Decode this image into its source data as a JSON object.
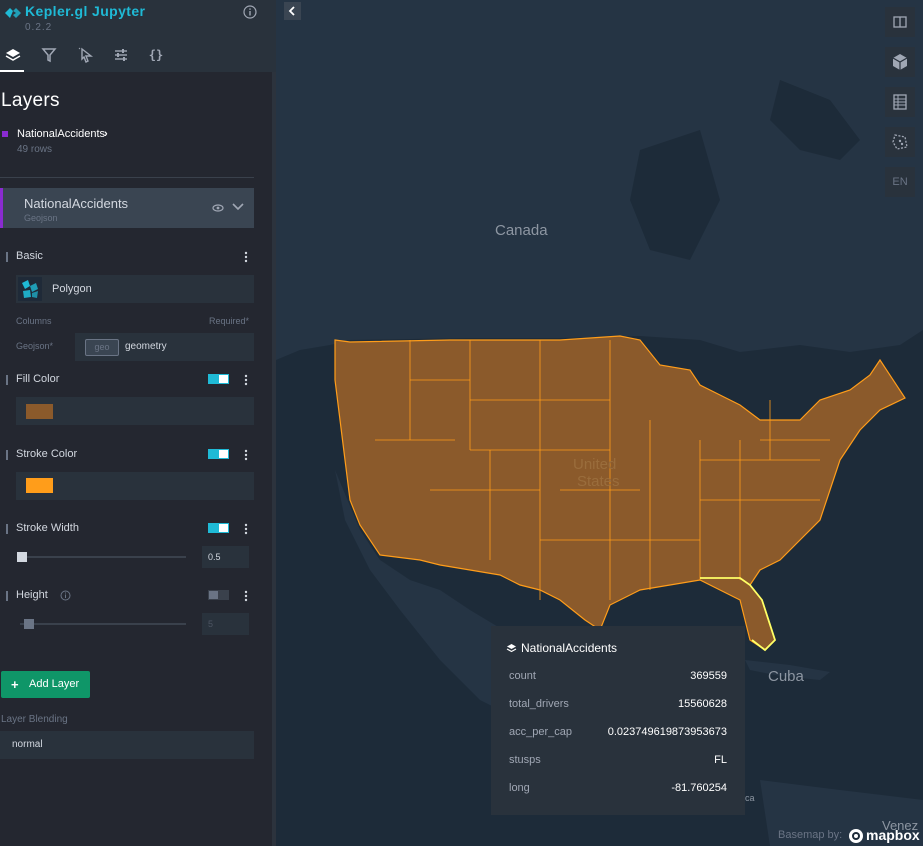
{
  "app": {
    "title": "Kepler.gl Jupyter",
    "version": "0.2.2"
  },
  "panel": {
    "title": "Layers",
    "dataset": {
      "name": "NationalAccidents",
      "rows": "49 rows"
    },
    "layer": {
      "name": "NationalAccidents",
      "type": "Geojson",
      "basic": {
        "title": "Basic",
        "layer_type": "Polygon",
        "columns_label": "Columns",
        "required_label": "Required*",
        "geojson_label": "Geojson*",
        "geo_tag": "geo",
        "geo_value": "geometry"
      },
      "fill_color": {
        "title": "Fill Color",
        "enabled": true,
        "color": "#8b5a2b"
      },
      "stroke_color": {
        "title": "Stroke Color",
        "enabled": true,
        "color": "#ff9d1a"
      },
      "stroke_width": {
        "title": "Stroke Width",
        "enabled": true,
        "value": "0.5"
      },
      "height": {
        "title": "Height",
        "enabled": false,
        "value": "5"
      }
    },
    "add_layer": "Add Layer",
    "blend_label": "Layer Blending",
    "blend_value": "normal"
  },
  "map": {
    "labels": {
      "canada": "Canada",
      "united": "United",
      "states": "States",
      "cuba": "Cuba",
      "venez": "Venez",
      "ica": "ica"
    },
    "lang": "EN",
    "basemap_by": "Basemap by:",
    "mapbox": "mapbox",
    "controls": [
      "split-map-icon",
      "3d-map-icon",
      "legend-icon",
      "draw-polygon-icon"
    ]
  },
  "tooltip": {
    "title": "NationalAccidents",
    "rows": [
      {
        "key": "count",
        "value": "369559"
      },
      {
        "key": "total_drivers",
        "value": "15560628"
      },
      {
        "key": "acc_per_cap",
        "value": "0.023749619873953673"
      },
      {
        "key": "stusps",
        "value": "FL"
      },
      {
        "key": "long",
        "value": "-81.760254"
      }
    ]
  },
  "colors": {
    "accent": "#1fbad6",
    "layer": "#8a2bd1",
    "add_button": "#0f9668",
    "fill": "#8b5a2b",
    "stroke": "#ff9d1a"
  }
}
